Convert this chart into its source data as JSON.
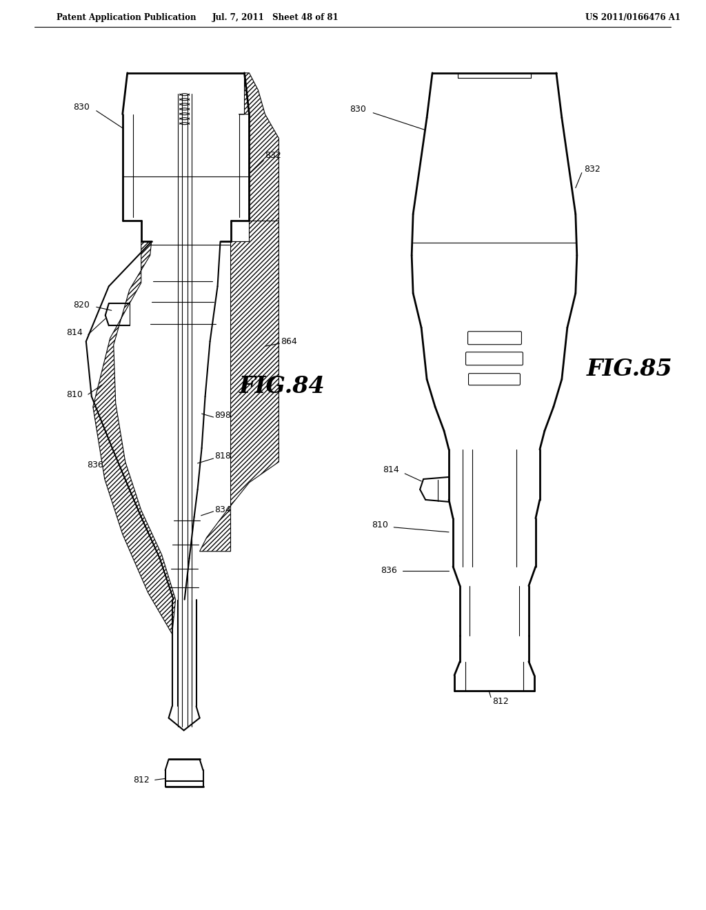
{
  "header_left": "Patent Application Publication",
  "header_mid": "Jul. 7, 2011   Sheet 48 of 81",
  "header_right": "US 2011/0166476 A1",
  "fig84_label": "FIG.84",
  "fig85_label": "FIG.85",
  "background_color": "#ffffff",
  "line_color": "#000000"
}
